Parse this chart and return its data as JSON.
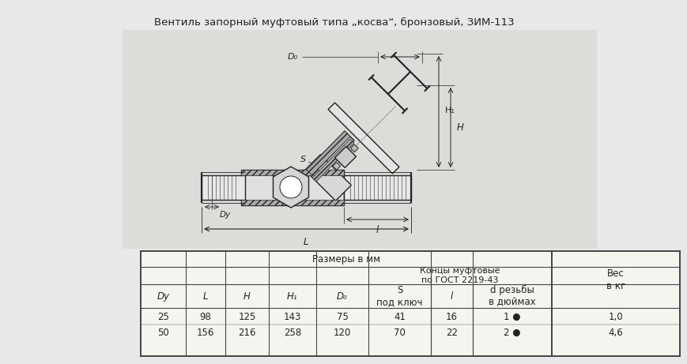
{
  "title": "Вентиль запорный муфтовый типа „косва“, бронзовый, ЗИМ-113",
  "bg_color": "#e8e8e8",
  "table_header_main": "Размеры в мм",
  "table_header_sub": "Концы муфтовые\nпо ГОСТ 2219-43",
  "table_header_ves": "Вес\nв кг",
  "col_headers": [
    "Dу",
    "L",
    "H",
    "H₁",
    "D₀",
    "S\nпод ключ",
    "l",
    "d резьбы\nв дюймах"
  ],
  "col_headers_italic": [
    true,
    true,
    true,
    true,
    true,
    false,
    true,
    false
  ],
  "row1": [
    "25",
    "98",
    "125",
    "143",
    "75",
    "41",
    "16",
    "1 ●",
    "1,0"
  ],
  "row2": [
    "50",
    "156",
    "216",
    "258",
    "120",
    "70",
    "22",
    "2 ●",
    "4,6"
  ],
  "table_bg": "#f5f5f0",
  "line_color": "#555555",
  "text_color": "#222222",
  "title_fontsize": 9.5,
  "table_fontsize": 8.5
}
